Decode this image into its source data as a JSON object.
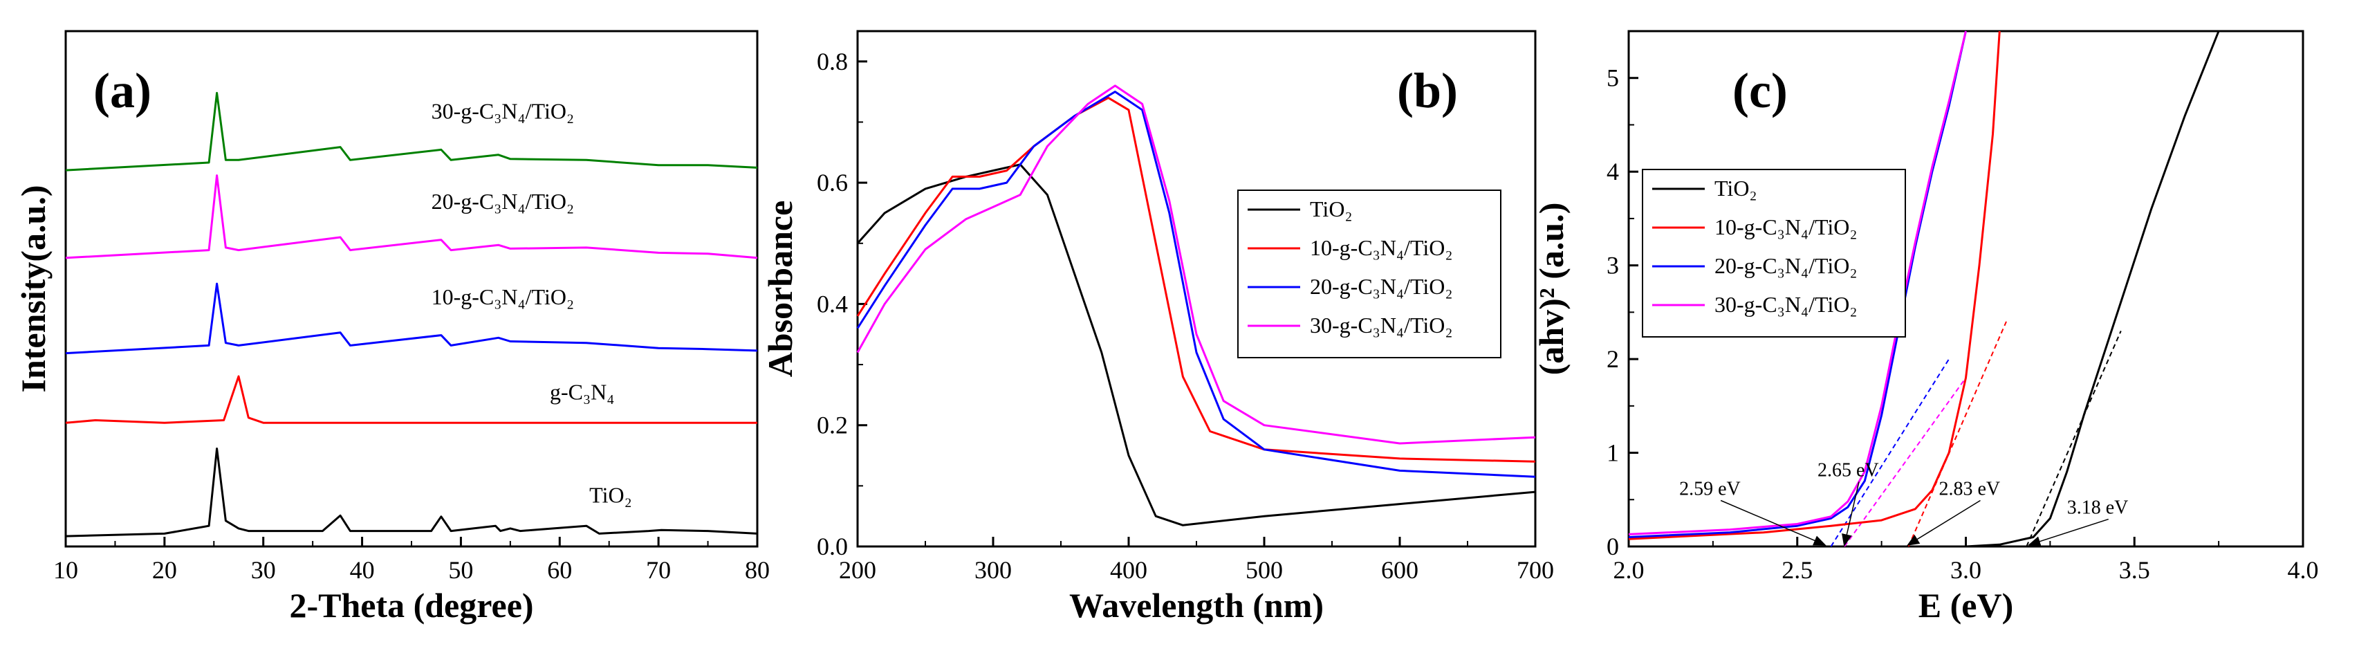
{
  "chart_data": [
    {
      "id": "a",
      "type": "line",
      "panel_label": "(a)",
      "xlabel": "2-Theta (degree)",
      "ylabel": "Intensity(a.u.)",
      "xlim": [
        10,
        80
      ],
      "xticks": [
        "10",
        "20",
        "30",
        "40",
        "50",
        "60",
        "70",
        "80"
      ],
      "series": [
        {
          "name": "TiO2",
          "label": "TiO₂",
          "color": "#000000",
          "baseline": 0.02,
          "points": [
            [
              10,
              0.02
            ],
            [
              20,
              0.025
            ],
            [
              24.5,
              0.04
            ],
            [
              25.3,
              0.19
            ],
            [
              26.2,
              0.05
            ],
            [
              27.5,
              0.035
            ],
            [
              28.5,
              0.03
            ],
            [
              36,
              0.03
            ],
            [
              37.8,
              0.06
            ],
            [
              38.8,
              0.03
            ],
            [
              47,
              0.03
            ],
            [
              48,
              0.058
            ],
            [
              49,
              0.03
            ],
            [
              53.5,
              0.04
            ],
            [
              54,
              0.03
            ],
            [
              55,
              0.035
            ],
            [
              56,
              0.03
            ],
            [
              62.7,
              0.04
            ],
            [
              64,
              0.025
            ],
            [
              69,
              0.03
            ],
            [
              70.3,
              0.032
            ],
            [
              75,
              0.03
            ],
            [
              80,
              0.025
            ]
          ]
        },
        {
          "name": "g-C3N4",
          "label": "g-C₃N₄",
          "color": "#ff0000",
          "baseline": 0.24,
          "points": [
            [
              10,
              0.24
            ],
            [
              13,
              0.245
            ],
            [
              20,
              0.24
            ],
            [
              26,
              0.245
            ],
            [
              27.5,
              0.33
            ],
            [
              28.5,
              0.25
            ],
            [
              30,
              0.24
            ],
            [
              80,
              0.24
            ]
          ]
        },
        {
          "name": "10-g-C3N4/TiO2",
          "label": "10-g-C₃N₄/TiO₂",
          "color": "#0000ff",
          "baseline": 0.38,
          "points": [
            [
              10,
              0.375
            ],
            [
              24.5,
              0.39
            ],
            [
              25.3,
              0.51
            ],
            [
              26.2,
              0.395
            ],
            [
              27.5,
              0.39
            ],
            [
              37.8,
              0.415
            ],
            [
              38.8,
              0.39
            ],
            [
              48,
              0.41
            ],
            [
              49,
              0.39
            ],
            [
              53.8,
              0.405
            ],
            [
              55,
              0.398
            ],
            [
              62.7,
              0.395
            ],
            [
              70,
              0.385
            ],
            [
              75,
              0.383
            ],
            [
              80,
              0.38
            ]
          ]
        },
        {
          "name": "20-g-C3N4/TiO2",
          "label": "20-g-C₃N₄/TiO₂",
          "color": "#ff00ff",
          "baseline": 0.56,
          "points": [
            [
              10,
              0.56
            ],
            [
              24.5,
              0.575
            ],
            [
              25.3,
              0.72
            ],
            [
              26.2,
              0.58
            ],
            [
              27.5,
              0.575
            ],
            [
              37.8,
              0.6
            ],
            [
              38.8,
              0.575
            ],
            [
              48,
              0.595
            ],
            [
              49,
              0.575
            ],
            [
              53.8,
              0.585
            ],
            [
              55,
              0.578
            ],
            [
              62.7,
              0.58
            ],
            [
              70,
              0.57
            ],
            [
              75,
              0.568
            ],
            [
              80,
              0.56
            ]
          ]
        },
        {
          "name": "30-g-C3N4/TiO2",
          "label": "30-g-C₃N₄/TiO₂",
          "color": "#008000",
          "baseline": 0.73,
          "points": [
            [
              10,
              0.73
            ],
            [
              24.5,
              0.745
            ],
            [
              25.3,
              0.88
            ],
            [
              26.2,
              0.75
            ],
            [
              27.5,
              0.75
            ],
            [
              37.8,
              0.775
            ],
            [
              38.8,
              0.75
            ],
            [
              48,
              0.77
            ],
            [
              49,
              0.75
            ],
            [
              53.8,
              0.76
            ],
            [
              55,
              0.752
            ],
            [
              62.7,
              0.75
            ],
            [
              70,
              0.74
            ],
            [
              75,
              0.74
            ],
            [
              80,
              0.735
            ]
          ]
        }
      ],
      "curve_labels": [
        {
          "text": "30-g-C₃N₄/TiO₂",
          "x": 47,
          "y": 0.83
        },
        {
          "text": "20-g-C₃N₄/TiO₂",
          "x": 47,
          "y": 0.655
        },
        {
          "text": "10-g-C₃N₄/TiO₂",
          "x": 47,
          "y": 0.47
        },
        {
          "text": "g-C₃N₄",
          "x": 59,
          "y": 0.285
        },
        {
          "text": "TiO₂",
          "x": 63,
          "y": 0.085
        }
      ]
    },
    {
      "id": "b",
      "type": "line",
      "panel_label": "(b)",
      "xlabel": "Wavelength (nm)",
      "ylabel": "Absorbance",
      "xlim": [
        200,
        700
      ],
      "ylim": [
        0.0,
        0.85
      ],
      "xticks": [
        "200",
        "300",
        "400",
        "500",
        "600",
        "700"
      ],
      "yticks": [
        "0.0",
        "0.2",
        "0.4",
        "0.6",
        "0.8"
      ],
      "legend": "center-right",
      "series": [
        {
          "name": "TiO2",
          "label": "TiO₂",
          "color": "#000000",
          "points": [
            [
              200,
              0.5
            ],
            [
              220,
              0.55
            ],
            [
              250,
              0.59
            ],
            [
              280,
              0.61
            ],
            [
              300,
              0.62
            ],
            [
              320,
              0.63
            ],
            [
              340,
              0.58
            ],
            [
              360,
              0.45
            ],
            [
              380,
              0.32
            ],
            [
              400,
              0.15
            ],
            [
              420,
              0.05
            ],
            [
              440,
              0.035
            ],
            [
              500,
              0.05
            ],
            [
              600,
              0.07
            ],
            [
              700,
              0.09
            ]
          ]
        },
        {
          "name": "10-g-C3N4/TiO2",
          "label": "10-g-C₃N₄/TiO₂",
          "color": "#ff0000",
          "points": [
            [
              200,
              0.38
            ],
            [
              220,
              0.45
            ],
            [
              250,
              0.55
            ],
            [
              270,
              0.61
            ],
            [
              290,
              0.61
            ],
            [
              310,
              0.62
            ],
            [
              330,
              0.66
            ],
            [
              360,
              0.71
            ],
            [
              385,
              0.74
            ],
            [
              400,
              0.72
            ],
            [
              420,
              0.5
            ],
            [
              440,
              0.28
            ],
            [
              460,
              0.19
            ],
            [
              500,
              0.16
            ],
            [
              600,
              0.145
            ],
            [
              700,
              0.14
            ]
          ]
        },
        {
          "name": "20-g-C3N4/TiO2",
          "label": "20-g-C₃N₄/TiO₂",
          "color": "#0000ff",
          "points": [
            [
              200,
              0.36
            ],
            [
              220,
              0.43
            ],
            [
              250,
              0.53
            ],
            [
              270,
              0.59
            ],
            [
              290,
              0.59
            ],
            [
              310,
              0.6
            ],
            [
              330,
              0.66
            ],
            [
              360,
              0.71
            ],
            [
              390,
              0.75
            ],
            [
              410,
              0.72
            ],
            [
              430,
              0.55
            ],
            [
              450,
              0.32
            ],
            [
              470,
              0.21
            ],
            [
              500,
              0.16
            ],
            [
              600,
              0.125
            ],
            [
              700,
              0.115
            ]
          ]
        },
        {
          "name": "30-g-C3N4/TiO2",
          "label": "30-g-C₃N₄/TiO₂",
          "color": "#ff00ff",
          "points": [
            [
              200,
              0.32
            ],
            [
              220,
              0.4
            ],
            [
              250,
              0.49
            ],
            [
              280,
              0.54
            ],
            [
              300,
              0.56
            ],
            [
              320,
              0.58
            ],
            [
              340,
              0.66
            ],
            [
              370,
              0.73
            ],
            [
              390,
              0.76
            ],
            [
              410,
              0.73
            ],
            [
              430,
              0.57
            ],
            [
              450,
              0.35
            ],
            [
              470,
              0.24
            ],
            [
              500,
              0.2
            ],
            [
              600,
              0.17
            ],
            [
              700,
              0.18
            ]
          ]
        }
      ]
    },
    {
      "id": "c",
      "type": "line",
      "panel_label": "(c)",
      "xlabel": "E (eV)",
      "ylabel": "(ahv)² (a.u.)",
      "xlim": [
        2.0,
        4.0
      ],
      "ylim": [
        0,
        5.5
      ],
      "xticks": [
        "2.0",
        "2.5",
        "3.0",
        "3.5",
        "4.0"
      ],
      "yticks": [
        "0",
        "1",
        "2",
        "3",
        "4",
        "5"
      ],
      "legend": "top-left",
      "series": [
        {
          "name": "TiO2",
          "label": "TiO₂",
          "color": "#000000",
          "points": [
            [
              3.0,
              0.0
            ],
            [
              3.1,
              0.02
            ],
            [
              3.2,
              0.1
            ],
            [
              3.25,
              0.3
            ],
            [
              3.3,
              0.8
            ],
            [
              3.35,
              1.4
            ],
            [
              3.45,
              2.5
            ],
            [
              3.55,
              3.6
            ],
            [
              3.65,
              4.6
            ],
            [
              3.75,
              5.5
            ]
          ]
        },
        {
          "name": "10-g-C3N4/TiO2",
          "label": "10-g-C₃N₄/TiO₂",
          "color": "#ff0000",
          "points": [
            [
              2.0,
              0.08
            ],
            [
              2.4,
              0.15
            ],
            [
              2.6,
              0.22
            ],
            [
              2.75,
              0.28
            ],
            [
              2.85,
              0.4
            ],
            [
              2.9,
              0.6
            ],
            [
              2.95,
              1.0
            ],
            [
              3.0,
              1.8
            ],
            [
              3.04,
              3.0
            ],
            [
              3.08,
              4.4
            ],
            [
              3.1,
              5.5
            ]
          ]
        },
        {
          "name": "20-g-C3N4/TiO2",
          "label": "20-g-C₃N₄/TiO₂",
          "color": "#0000ff",
          "points": [
            [
              2.0,
              0.1
            ],
            [
              2.3,
              0.15
            ],
            [
              2.5,
              0.22
            ],
            [
              2.6,
              0.3
            ],
            [
              2.65,
              0.42
            ],
            [
              2.7,
              0.7
            ],
            [
              2.75,
              1.4
            ],
            [
              2.8,
              2.3
            ],
            [
              2.85,
              3.2
            ],
            [
              2.9,
              4.0
            ],
            [
              2.95,
              4.7
            ],
            [
              3.0,
              5.5
            ]
          ]
        },
        {
          "name": "30-g-C3N4/TiO2",
          "label": "30-g-C₃N₄/TiO₂",
          "color": "#ff00ff",
          "points": [
            [
              2.0,
              0.13
            ],
            [
              2.3,
              0.18
            ],
            [
              2.5,
              0.24
            ],
            [
              2.6,
              0.32
            ],
            [
              2.65,
              0.48
            ],
            [
              2.7,
              0.8
            ],
            [
              2.75,
              1.5
            ],
            [
              2.8,
              2.4
            ],
            [
              2.85,
              3.25
            ],
            [
              2.9,
              4.05
            ],
            [
              2.95,
              4.75
            ],
            [
              3.0,
              5.5
            ]
          ]
        }
      ],
      "tangents": [
        {
          "color": "#000000",
          "from": [
            3.18,
            0
          ],
          "to": [
            3.46,
            2.3
          ]
        },
        {
          "color": "#ff0000",
          "from": [
            2.83,
            0
          ],
          "to": [
            3.12,
            2.4
          ]
        },
        {
          "color": "#0000ff",
          "from": [
            2.6,
            0
          ],
          "to": [
            2.95,
            2.0
          ]
        },
        {
          "color": "#ff00ff",
          "from": [
            2.64,
            0
          ],
          "to": [
            3.0,
            1.8
          ]
        }
      ],
      "annotations": [
        {
          "text": "2.59 eV",
          "x": 2.15,
          "y": 0.55,
          "ax": 2.58,
          "ay": 0.02
        },
        {
          "text": "2.65 eV",
          "x": 2.56,
          "y": 0.75,
          "ax": 2.64,
          "ay": 0.02
        },
        {
          "text": "2.83 eV",
          "x": 2.92,
          "y": 0.55,
          "ax": 2.83,
          "ay": 0.02
        },
        {
          "text": "3.18 eV",
          "x": 3.3,
          "y": 0.35,
          "ax": 3.19,
          "ay": 0.02
        }
      ]
    }
  ]
}
